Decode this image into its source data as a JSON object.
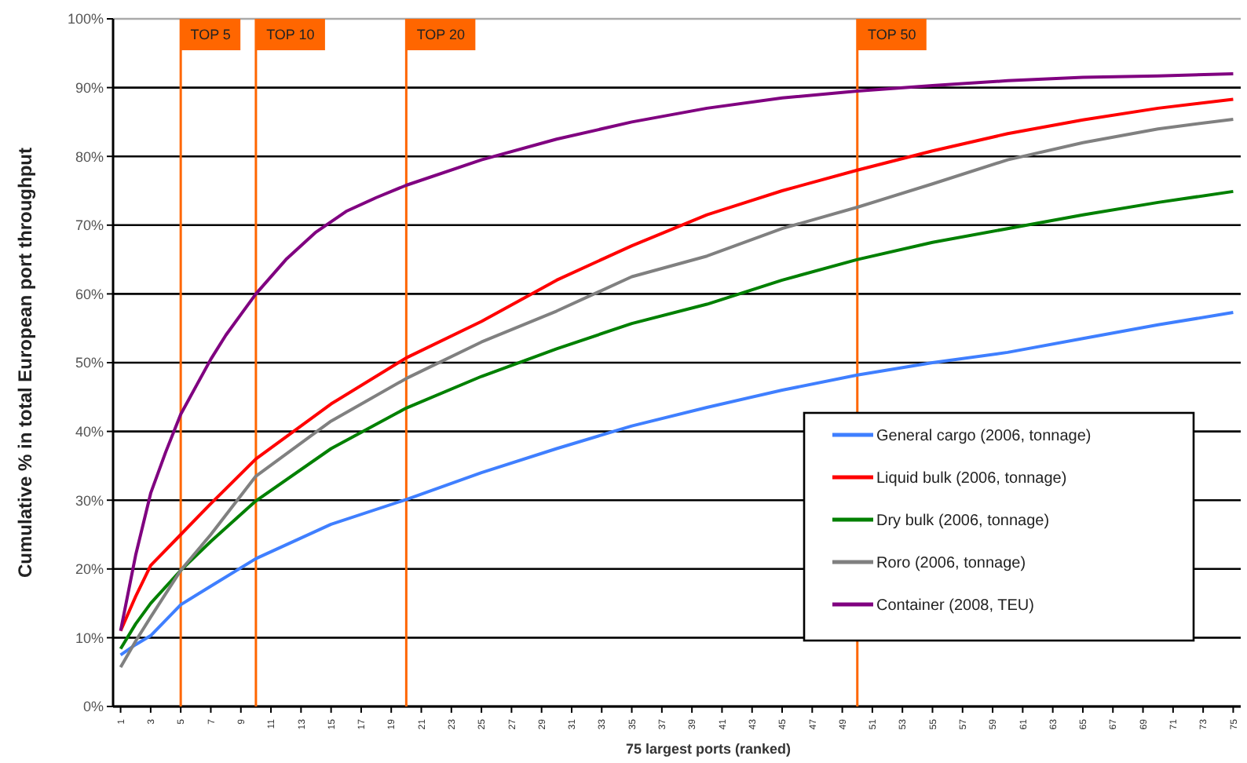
{
  "chart_data": {
    "type": "line",
    "xlabel": "75 largest ports (ranked)",
    "ylabel": "Cumulative % in total European port throughput",
    "xlim": [
      0.5,
      75.5
    ],
    "xticks": [
      1,
      3,
      5,
      7,
      9,
      11,
      13,
      15,
      17,
      19,
      21,
      23,
      25,
      27,
      29,
      31,
      33,
      35,
      37,
      39,
      41,
      43,
      45,
      47,
      49,
      51,
      53,
      55,
      57,
      59,
      61,
      63,
      65,
      67,
      69,
      71,
      73,
      75
    ],
    "ylim": [
      0,
      100
    ],
    "yticks": [
      {
        "value": 0,
        "label": "0%"
      },
      {
        "value": 10,
        "label": "10%"
      },
      {
        "value": 20,
        "label": "20%"
      },
      {
        "value": 30,
        "label": "30%"
      },
      {
        "value": 40,
        "label": "40%"
      },
      {
        "value": 50,
        "label": "50%"
      },
      {
        "value": 60,
        "label": "60%"
      },
      {
        "value": 70,
        "label": "70%"
      },
      {
        "value": 80,
        "label": "80%"
      },
      {
        "value": 90,
        "label": "90%"
      },
      {
        "value": 100,
        "label": "100%"
      }
    ],
    "grid": "y",
    "legend": "bottom right",
    "marker": "none",
    "line_style": "solid",
    "x": [
      1,
      2,
      3,
      5,
      7,
      10,
      15,
      20,
      25,
      30,
      35,
      40,
      45,
      50,
      55,
      60,
      65,
      70,
      75
    ],
    "series": [
      {
        "name": "General cargo (2006, tonnage)",
        "color": "#3f7fff",
        "values": [
          7.5,
          9,
          10.3,
          14.8,
          17.5,
          21.5,
          26.5,
          30.1,
          34,
          37.5,
          40.8,
          43.5,
          46,
          48.2,
          50,
          51.5,
          53.5,
          55.5,
          57.3
        ]
      },
      {
        "name": "Liquid bulk (2006, tonnage)",
        "color": "#ff0000",
        "values": [
          11,
          16,
          20.5,
          25,
          29.5,
          36,
          44,
          50.7,
          56,
          62,
          67,
          71.5,
          75,
          78,
          80.8,
          83.3,
          85.3,
          87,
          88.3
        ]
      },
      {
        "name": "Dry bulk (2006, tonnage)",
        "color": "#008000",
        "values": [
          8.4,
          12,
          15,
          19.8,
          24,
          29.9,
          37.5,
          43.4,
          48,
          52,
          55.7,
          58.5,
          62,
          65,
          67.5,
          69.5,
          71.5,
          73.3,
          74.9
        ]
      },
      {
        "name": "Roro (2006, tonnage)",
        "color": "#808080",
        "values": [
          5.7,
          9.5,
          13,
          19.8,
          25,
          33.5,
          41.5,
          47.7,
          53,
          57.5,
          62.5,
          65.5,
          69.5,
          72.6,
          76,
          79.5,
          82,
          84,
          85.4
        ]
      },
      {
        "name": "Container (2008, TEU)",
        "color": "#800080",
        "x": [
          1,
          2,
          3,
          4,
          5,
          6,
          7,
          8,
          9,
          10,
          12,
          14,
          16,
          18,
          20,
          25,
          30,
          35,
          40,
          45,
          50,
          55,
          60,
          65,
          70,
          75
        ],
        "values": [
          11,
          22,
          31,
          37,
          42.5,
          46.5,
          50.5,
          54,
          57,
          60,
          65,
          69,
          72,
          74,
          75.8,
          79.5,
          82.5,
          85,
          87,
          88.5,
          89.5,
          90.3,
          91,
          91.5,
          91.7,
          92
        ]
      }
    ],
    "ref_lines": [
      {
        "axis": "x",
        "value": 5,
        "label": "TOP 5",
        "color": "#ff6600"
      },
      {
        "axis": "x",
        "value": 10,
        "label": "TOP 10",
        "color": "#ff6600"
      },
      {
        "axis": "x",
        "value": 20,
        "label": "TOP 20",
        "color": "#ff6600"
      },
      {
        "axis": "x",
        "value": 50,
        "label": "TOP 50",
        "color": "#ff6600"
      }
    ]
  }
}
